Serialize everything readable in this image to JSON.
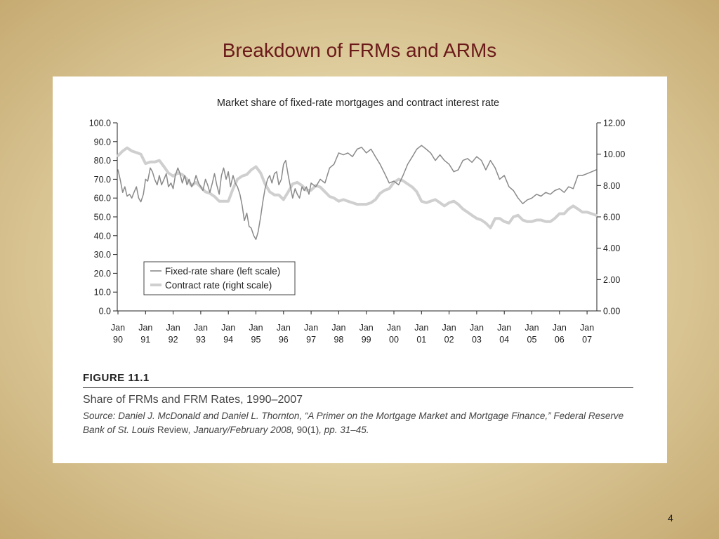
{
  "slide": {
    "title": "Breakdown of FRMs and ARMs",
    "page_number": "4"
  },
  "figure": {
    "number": "FIGURE 11.1",
    "caption": "Share of FRMs and FRM Rates, 1990–2007",
    "source_part1": "Source: Daniel J. McDonald and Daniel L. Thornton, “A Primer on the Mortgage Market and Mortgage Finance,” Federal Reserve Bank of St. Louis",
    "source_part2": " Review",
    "source_part3": ", January/February 2008, ",
    "source_part4": "90(1)",
    "source_part5": ", pp. 31–45."
  },
  "colors": {
    "fixed_series": "#8a8a8a",
    "rate_series": "#cfcfcf",
    "axis": "#222222"
  },
  "chart_data": {
    "type": "line",
    "title": "Market share of fixed-rate mortgages and contract interest rate",
    "x_ticks": [
      {
        "top": "Jan",
        "bottom": "90"
      },
      {
        "top": "Jan",
        "bottom": "91"
      },
      {
        "top": "Jan",
        "bottom": "92"
      },
      {
        "top": "Jan",
        "bottom": "93"
      },
      {
        "top": "Jan",
        "bottom": "94"
      },
      {
        "top": "Jan",
        "bottom": "95"
      },
      {
        "top": "Jan",
        "bottom": "96"
      },
      {
        "top": "Jan",
        "bottom": "97"
      },
      {
        "top": "Jan",
        "bottom": "98"
      },
      {
        "top": "Jan",
        "bottom": "99"
      },
      {
        "top": "Jan",
        "bottom": "00"
      },
      {
        "top": "Jan",
        "bottom": "01"
      },
      {
        "top": "Jan",
        "bottom": "02"
      },
      {
        "top": "Jan",
        "bottom": "03"
      },
      {
        "top": "Jan",
        "bottom": "04"
      },
      {
        "top": "Jan",
        "bottom": "05"
      },
      {
        "top": "Jan",
        "bottom": "06"
      },
      {
        "top": "Jan",
        "bottom": "07"
      }
    ],
    "xlim": [
      1990.0,
      2007.33
    ],
    "left_axis": {
      "ylim": [
        0,
        100
      ],
      "ticks": [
        "0.0",
        "10.0",
        "20.0",
        "30.0",
        "40.0",
        "50.0",
        "60.0",
        "70.0",
        "80.0",
        "90.0",
        "100.0"
      ]
    },
    "right_axis": {
      "ylim": [
        0,
        12
      ],
      "ticks": [
        "0.00",
        "2.00",
        "4.00",
        "6.00",
        "8.00",
        "10.00",
        "12.00"
      ]
    },
    "legend": {
      "placement": "lower-left",
      "entries": [
        "Fixed-rate share (left scale)",
        "Contract rate (right scale)"
      ]
    },
    "grid": false,
    "series": [
      {
        "name": "Fixed-rate share (left scale)",
        "axis": "left",
        "x": [
          1990.0,
          1990.08,
          1990.17,
          1990.25,
          1990.33,
          1990.42,
          1990.5,
          1990.58,
          1990.67,
          1990.75,
          1990.83,
          1990.92,
          1991.0,
          1991.08,
          1991.17,
          1991.25,
          1991.33,
          1991.42,
          1991.5,
          1991.58,
          1991.67,
          1991.75,
          1991.83,
          1991.92,
          1992.0,
          1992.08,
          1992.17,
          1992.25,
          1992.33,
          1992.42,
          1992.5,
          1992.58,
          1992.67,
          1992.75,
          1992.83,
          1992.92,
          1993.0,
          1993.08,
          1993.17,
          1993.25,
          1993.33,
          1993.42,
          1993.5,
          1993.58,
          1993.67,
          1993.75,
          1993.83,
          1993.92,
          1994.0,
          1994.08,
          1994.17,
          1994.25,
          1994.33,
          1994.42,
          1994.5,
          1994.58,
          1994.67,
          1994.75,
          1994.83,
          1994.92,
          1995.0,
          1995.08,
          1995.17,
          1995.25,
          1995.33,
          1995.42,
          1995.5,
          1995.58,
          1995.67,
          1995.75,
          1995.83,
          1995.92,
          1996.0,
          1996.08,
          1996.17,
          1996.25,
          1996.33,
          1996.42,
          1996.5,
          1996.58,
          1996.67,
          1996.75,
          1996.83,
          1996.92,
          1997.0,
          1997.17,
          1997.33,
          1997.5,
          1997.67,
          1997.83,
          1998.0,
          1998.17,
          1998.33,
          1998.5,
          1998.67,
          1998.83,
          1999.0,
          1999.17,
          1999.33,
          1999.5,
          1999.67,
          1999.83,
          2000.0,
          2000.17,
          2000.33,
          2000.5,
          2000.67,
          2000.83,
          2001.0,
          2001.17,
          2001.33,
          2001.5,
          2001.67,
          2001.83,
          2002.0,
          2002.17,
          2002.33,
          2002.5,
          2002.67,
          2002.83,
          2003.0,
          2003.17,
          2003.33,
          2003.5,
          2003.67,
          2003.83,
          2004.0,
          2004.17,
          2004.33,
          2004.5,
          2004.67,
          2004.83,
          2005.0,
          2005.17,
          2005.33,
          2005.5,
          2005.67,
          2005.83,
          2006.0,
          2006.17,
          2006.33,
          2006.5,
          2006.67,
          2006.83,
          2007.0,
          2007.17,
          2007.33
        ],
        "values": [
          75,
          70,
          63,
          66,
          61,
          62,
          60,
          63,
          66,
          60,
          58,
          62,
          70,
          69,
          76,
          74,
          70,
          67,
          72,
          67,
          70,
          73,
          66,
          68,
          65,
          72,
          76,
          73,
          68,
          72,
          67,
          70,
          66,
          68,
          72,
          68,
          66,
          64,
          70,
          67,
          63,
          68,
          73,
          67,
          62,
          72,
          76,
          70,
          74,
          66,
          72,
          68,
          66,
          62,
          56,
          48,
          52,
          45,
          44,
          40,
          38,
          42,
          50,
          58,
          65,
          70,
          72,
          68,
          73,
          74,
          67,
          70,
          78,
          80,
          72,
          66,
          60,
          65,
          62,
          60,
          66,
          64,
          66,
          62,
          68,
          66,
          70,
          68,
          76,
          78,
          84,
          83,
          84,
          82,
          86,
          87,
          84,
          86,
          82,
          78,
          73,
          68,
          69,
          67,
          72,
          78,
          82,
          86,
          88,
          86,
          84,
          80,
          83,
          80,
          78,
          74,
          75,
          80,
          81,
          79,
          82,
          80,
          75,
          80,
          76,
          70,
          72,
          66,
          64,
          60,
          57,
          59,
          60,
          62,
          61,
          63,
          62,
          64,
          65,
          63,
          66,
          65,
          72,
          72,
          73,
          74,
          75
        ]
      },
      {
        "name": "Contract rate (right scale)",
        "axis": "right",
        "x": [
          1990.0,
          1990.17,
          1990.33,
          1990.5,
          1990.67,
          1990.83,
          1991.0,
          1991.17,
          1991.33,
          1991.5,
          1991.67,
          1991.83,
          1992.0,
          1992.17,
          1992.33,
          1992.5,
          1992.67,
          1992.83,
          1993.0,
          1993.17,
          1993.33,
          1993.5,
          1993.67,
          1993.83,
          1994.0,
          1994.17,
          1994.33,
          1994.5,
          1994.67,
          1994.83,
          1995.0,
          1995.17,
          1995.33,
          1995.5,
          1995.67,
          1995.83,
          1996.0,
          1996.17,
          1996.33,
          1996.5,
          1996.67,
          1996.83,
          1997.0,
          1997.17,
          1997.33,
          1997.5,
          1997.67,
          1997.83,
          1998.0,
          1998.17,
          1998.33,
          1998.5,
          1998.67,
          1998.83,
          1999.0,
          1999.17,
          1999.33,
          1999.5,
          1999.67,
          1999.83,
          2000.0,
          2000.17,
          2000.33,
          2000.5,
          2000.67,
          2000.83,
          2001.0,
          2001.17,
          2001.33,
          2001.5,
          2001.67,
          2001.83,
          2002.0,
          2002.17,
          2002.33,
          2002.5,
          2002.67,
          2002.83,
          2003.0,
          2003.17,
          2003.33,
          2003.5,
          2003.67,
          2003.83,
          2004.0,
          2004.17,
          2004.33,
          2004.5,
          2004.67,
          2004.83,
          2005.0,
          2005.17,
          2005.33,
          2005.5,
          2005.67,
          2005.83,
          2006.0,
          2006.17,
          2006.33,
          2006.5,
          2006.67,
          2006.83,
          2007.0,
          2007.17,
          2007.33
        ],
        "values": [
          9.9,
          10.2,
          10.4,
          10.2,
          10.1,
          10.0,
          9.4,
          9.5,
          9.5,
          9.6,
          9.2,
          8.8,
          8.6,
          8.8,
          8.7,
          8.4,
          8.0,
          8.2,
          7.9,
          7.6,
          7.5,
          7.3,
          7.0,
          7.0,
          7.0,
          7.8,
          8.4,
          8.6,
          8.7,
          9.0,
          9.2,
          8.8,
          8.1,
          7.6,
          7.4,
          7.4,
          7.1,
          7.6,
          8.1,
          8.2,
          8.0,
          7.7,
          7.7,
          8.0,
          7.9,
          7.6,
          7.3,
          7.2,
          7.0,
          7.1,
          7.0,
          6.9,
          6.8,
          6.8,
          6.8,
          6.9,
          7.1,
          7.5,
          7.7,
          7.8,
          8.2,
          8.4,
          8.3,
          8.1,
          7.9,
          7.6,
          7.0,
          6.9,
          7.0,
          7.1,
          6.9,
          6.7,
          6.9,
          7.0,
          6.8,
          6.5,
          6.3,
          6.1,
          5.9,
          5.8,
          5.6,
          5.3,
          5.9,
          5.9,
          5.7,
          5.6,
          6.0,
          6.1,
          5.8,
          5.7,
          5.7,
          5.8,
          5.8,
          5.7,
          5.7,
          5.9,
          6.2,
          6.2,
          6.5,
          6.7,
          6.5,
          6.3,
          6.3,
          6.2,
          6.1
        ]
      }
    ]
  }
}
